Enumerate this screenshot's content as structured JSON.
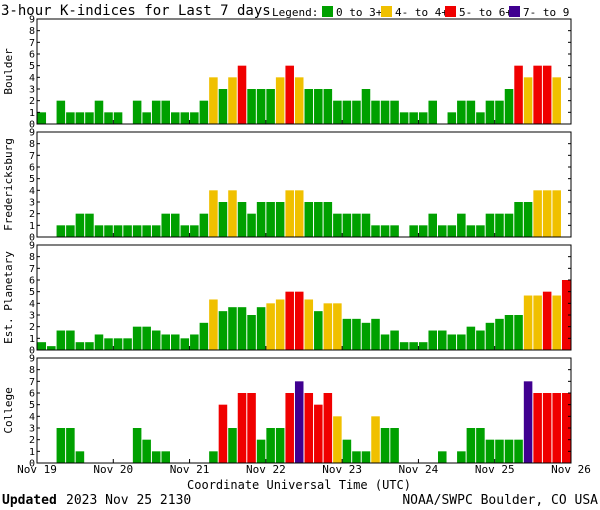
{
  "header": {
    "title": "3-hour K-indices for Last 7 days",
    "legend_label": "Legend:"
  },
  "footer": {
    "updated_label": "Updated",
    "updated_value": "2023 Nov 25 2130",
    "source": "NOAA/SWPC Boulder, CO USA"
  },
  "chart_data": {
    "type": "bar",
    "title": "3-hour K-indices for Last 7 days",
    "xlabel": "Coordinate Universal Time (UTC)",
    "x_ticks": [
      "Nov 19",
      "Nov 20",
      "Nov 21",
      "Nov 22",
      "Nov 23",
      "Nov 24",
      "Nov 25",
      "Nov 26"
    ],
    "ylim": [
      0,
      9
    ],
    "y_ticks": [
      "0",
      "1",
      "2",
      "3",
      "4",
      "5",
      "6",
      "7",
      "8",
      "9"
    ],
    "grid": false,
    "legend": [
      {
        "label": "0 to 3+",
        "color": "#00a000"
      },
      {
        "label": "4- to 4+",
        "color": "#f0c000"
      },
      {
        "label": "5- to 6+",
        "color": "#f00000"
      },
      {
        "label": "7- to 9",
        "color": "#400090"
      }
    ],
    "panels": [
      {
        "name": "Boulder",
        "values": [
          1,
          0,
          2,
          1,
          1,
          1,
          2,
          1,
          1,
          0,
          2,
          1,
          2,
          2,
          1,
          1,
          1,
          2,
          4,
          3,
          4,
          5,
          3,
          3,
          3,
          4,
          5,
          4,
          3,
          3,
          3,
          2,
          2,
          2,
          3,
          2,
          2,
          2,
          1,
          1,
          1,
          2,
          0,
          1,
          2,
          2,
          1,
          2,
          2,
          3,
          5,
          4,
          5,
          5,
          4,
          0
        ]
      },
      {
        "name": "Fredericksburg",
        "values": [
          0,
          0,
          1,
          1,
          2,
          2,
          1,
          1,
          1,
          1,
          1,
          1,
          1,
          2,
          2,
          1,
          1,
          2,
          4,
          3,
          4,
          3,
          2,
          3,
          3,
          3,
          4,
          4,
          3,
          3,
          3,
          2,
          2,
          2,
          2,
          1,
          1,
          1,
          0,
          1,
          1,
          2,
          1,
          1,
          2,
          1,
          1,
          2,
          2,
          2,
          3,
          3,
          4,
          4,
          4,
          0
        ]
      },
      {
        "name": "Est. Planetary",
        "values": [
          0.67,
          0.33,
          1.67,
          1.67,
          0.67,
          0.67,
          1.33,
          1,
          1,
          1,
          2,
          2,
          1.67,
          1.33,
          1.33,
          1,
          1.33,
          2.33,
          4.33,
          3.33,
          3.67,
          3.67,
          3,
          3.67,
          4,
          4.33,
          5,
          5,
          4.33,
          3.33,
          4,
          4,
          2.67,
          2.67,
          2.33,
          2.67,
          1.33,
          1.67,
          0.67,
          0.67,
          0.67,
          1.67,
          1.67,
          1.33,
          1.33,
          2,
          1.67,
          2.33,
          2.67,
          3,
          3,
          4.67,
          4.67,
          5,
          4.67,
          6
        ]
      },
      {
        "name": "College",
        "values": [
          0,
          0,
          3,
          3,
          1,
          0,
          0,
          0,
          0,
          0,
          3,
          2,
          1,
          1,
          0,
          0,
          0,
          0,
          1,
          5,
          3,
          6,
          6,
          2,
          3,
          3,
          6,
          7,
          6,
          5,
          6,
          4,
          2,
          1,
          1,
          4,
          3,
          3,
          0,
          0,
          0,
          0,
          1,
          0,
          1,
          3,
          3,
          2,
          2,
          2,
          2,
          7,
          6,
          6,
          6,
          6
        ]
      }
    ]
  }
}
